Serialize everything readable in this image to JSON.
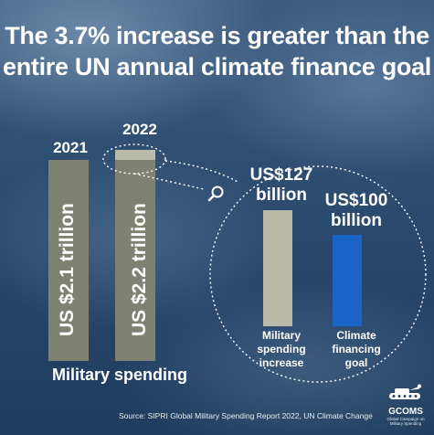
{
  "title": {
    "line1": "The 3.7% increase is greater than the",
    "line2": "entire UN annual climate finance goal"
  },
  "chart_data": [
    {
      "type": "bar",
      "categories": [
        "2021",
        "2022"
      ],
      "values": [
        2.1,
        2.2
      ],
      "value_labels": [
        "US $2.1 trillion",
        "US $2.2 trillion"
      ],
      "xlabel": "Military spending",
      "colors": {
        "bar": "#7f8272",
        "increase": "#b9baa8"
      }
    },
    {
      "type": "bar",
      "categories": [
        "Military spending increase",
        "Climate financing goal"
      ],
      "category_lines": [
        [
          "Military",
          "spending",
          "increase"
        ],
        [
          "Climate",
          "financing",
          "goal"
        ]
      ],
      "values": [
        127,
        100
      ],
      "value_labels": [
        [
          "US$127",
          "billion"
        ],
        [
          "US$100",
          "billion"
        ]
      ],
      "colors": [
        "#b9baa8",
        "#1a64c8"
      ]
    }
  ],
  "source": "Source: SIPRI Global Military Spending Report 2022, UN Climate Change",
  "logo": {
    "name": "GCOMS",
    "subtitle_line1": "Global Campaign on",
    "subtitle_line2": "Military Spending",
    "icon": "tank-with-flowers-icon"
  },
  "icons": {
    "magnifier": "magnifier-icon"
  }
}
